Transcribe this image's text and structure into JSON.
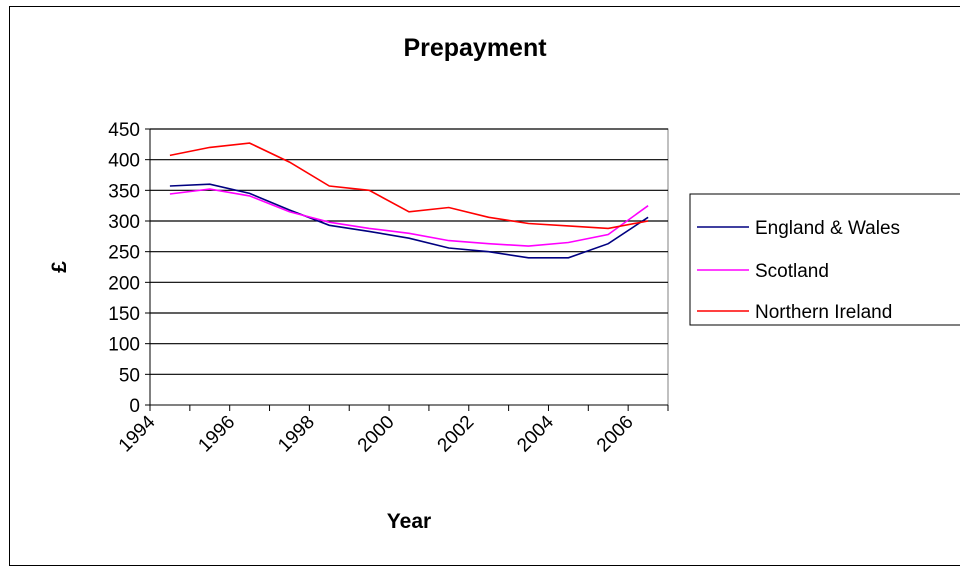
{
  "chart_data": {
    "type": "line",
    "title": "Prepayment",
    "xlabel": "Year",
    "ylabel": "£",
    "ylim": [
      0,
      450
    ],
    "yticks": [
      0,
      50,
      100,
      150,
      200,
      250,
      300,
      350,
      400,
      450
    ],
    "xlim": [
      1994,
      2007
    ],
    "xticks": [
      "1994",
      "1996",
      "1998",
      "2000",
      "2002",
      "2004",
      "2006"
    ],
    "grid": "horizontal",
    "legend_position": "right",
    "x": [
      1994.5,
      1995.5,
      1996.5,
      1997.5,
      1998.5,
      1999.5,
      2000.5,
      2001.5,
      2002.5,
      2003.5,
      2004.5,
      2005.5,
      2006.5
    ],
    "series": [
      {
        "name": "England & Wales",
        "color": "#000080",
        "values": [
          357,
          360,
          345,
          318,
          293,
          283,
          272,
          256,
          250,
          240,
          240,
          263,
          306
        ]
      },
      {
        "name": "Scotland",
        "color": "#ff00ff",
        "values": [
          344,
          352,
          341,
          315,
          298,
          288,
          280,
          268,
          263,
          259,
          265,
          278,
          325
        ]
      },
      {
        "name": "Northern Ireland",
        "color": "#ff0000",
        "values": [
          407,
          420,
          427,
          396,
          357,
          350,
          315,
          322,
          306,
          296,
          292,
          288,
          300
        ]
      }
    ]
  }
}
